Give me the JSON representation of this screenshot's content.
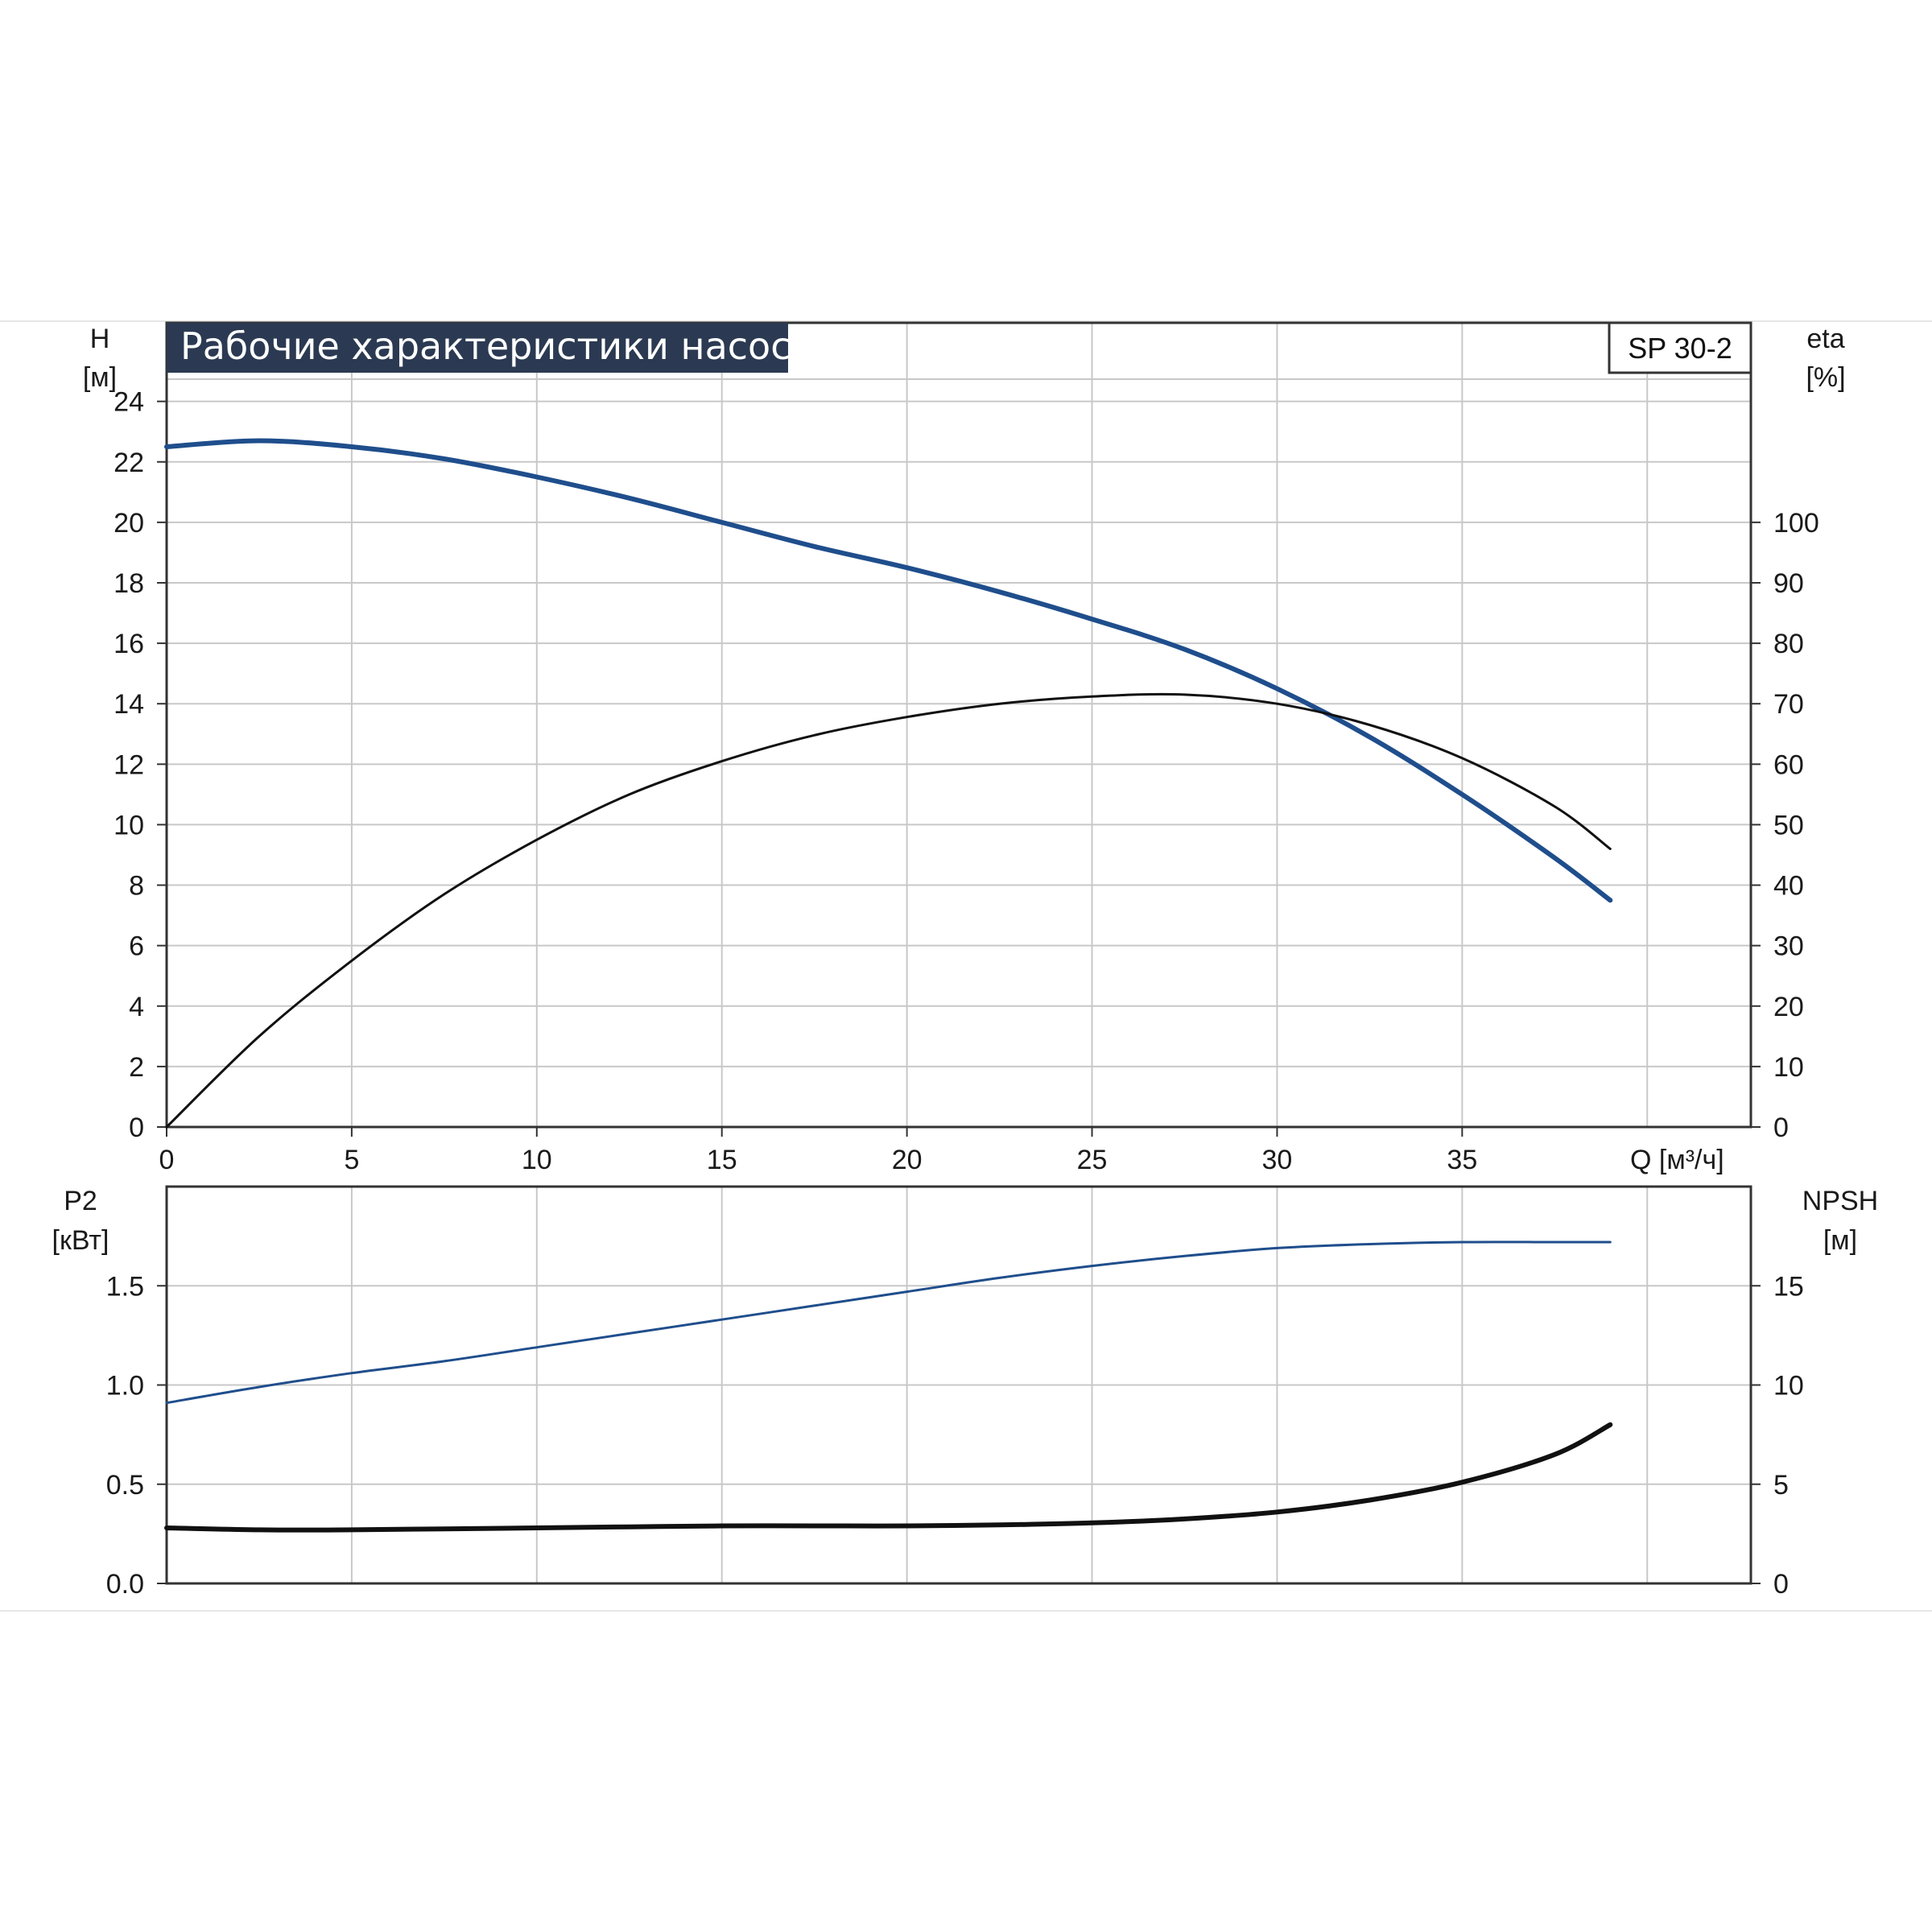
{
  "title": "Рабочие характеристики насоса",
  "model": "SP 30-2",
  "colors": {
    "blue": "#1f4e8c",
    "black": "#111111",
    "grid": "#c8c8c8",
    "title_bg": "#2b3a52"
  },
  "chart_data": [
    {
      "type": "line",
      "name": "upper",
      "x_axis": {
        "label": "Q [м³/ч]",
        "range": [
          0,
          42.8
        ],
        "ticks": [
          0,
          5,
          10,
          15,
          20,
          25,
          30,
          35
        ]
      },
      "y_left": {
        "label_line1": "H",
        "label_line2": "[м]",
        "range": [
          0,
          26.6
        ],
        "ticks": [
          0,
          2,
          4,
          6,
          8,
          10,
          12,
          14,
          16,
          18,
          20,
          22,
          24
        ]
      },
      "y_right": {
        "label_line1": "eta",
        "label_line2": "[%]",
        "range": [
          0,
          133
        ],
        "ticks": [
          0,
          10,
          20,
          30,
          40,
          50,
          60,
          70,
          80,
          90,
          100
        ]
      },
      "grid": true,
      "series": [
        {
          "axis": "left",
          "color": "#1f4e8c",
          "x": [
            0,
            2.5,
            5,
            7.5,
            10,
            12.5,
            15,
            17.5,
            20,
            22.5,
            25,
            27.5,
            30,
            32.5,
            35,
            37.5,
            39
          ],
          "y": [
            22.5,
            22.7,
            22.5,
            22.1,
            21.5,
            20.8,
            20.0,
            19.2,
            18.5,
            17.7,
            16.8,
            15.8,
            14.5,
            12.9,
            11.0,
            8.9,
            7.5
          ]
        },
        {
          "axis": "right",
          "color": "#111111",
          "x": [
            0,
            2.5,
            5,
            7.5,
            10,
            12.5,
            15,
            17.5,
            20,
            22.5,
            25,
            27.5,
            30,
            32.5,
            35,
            37.5,
            39
          ],
          "y": [
            0,
            15,
            27.5,
            38.5,
            47.5,
            55,
            60.5,
            64.8,
            67.8,
            70,
            71.2,
            71.5,
            70,
            66.5,
            61,
            53,
            46
          ]
        }
      ]
    },
    {
      "type": "line",
      "name": "lower",
      "x_axis": {
        "range": [
          0,
          42.8
        ]
      },
      "y_left": {
        "label_line1": "P2",
        "label_line2": "[кВт]",
        "range": [
          0,
          2.0
        ],
        "ticks": [
          "0.0",
          "0.5",
          "1.0",
          "1.5"
        ]
      },
      "y_right": {
        "label_line1": "NPSH",
        "label_line2": "[м]",
        "range": [
          0,
          20
        ],
        "ticks": [
          "0",
          "5",
          "10",
          "15"
        ]
      },
      "grid": true,
      "series": [
        {
          "axis": "left",
          "color": "#1f4e8c",
          "x": [
            0,
            2.5,
            5,
            7.5,
            10,
            12.5,
            15,
            17.5,
            20,
            22.5,
            25,
            27.5,
            30,
            32.5,
            35,
            37.5,
            39
          ],
          "y": [
            0.91,
            0.99,
            1.06,
            1.12,
            1.19,
            1.26,
            1.33,
            1.4,
            1.47,
            1.54,
            1.6,
            1.65,
            1.69,
            1.71,
            1.72,
            1.72,
            1.72
          ]
        },
        {
          "axis": "right",
          "color": "#111111",
          "x": [
            0,
            2.5,
            5,
            7.5,
            10,
            12.5,
            15,
            17.5,
            20,
            22.5,
            25,
            27.5,
            30,
            32.5,
            35,
            37.5,
            39
          ],
          "y": [
            2.8,
            2.7,
            2.7,
            2.75,
            2.8,
            2.85,
            2.9,
            2.9,
            2.9,
            2.95,
            3.05,
            3.25,
            3.6,
            4.2,
            5.1,
            6.5,
            8.0
          ]
        }
      ]
    }
  ]
}
